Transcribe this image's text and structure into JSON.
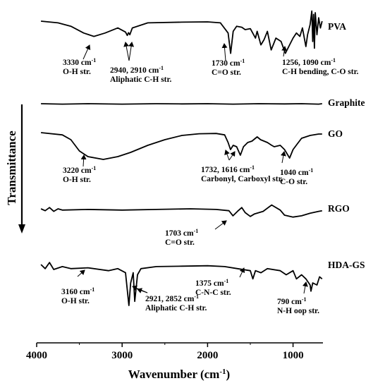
{
  "chart_data": {
    "type": "line",
    "xlabel": "Wavenumber (cm-1)",
    "ylabel": "Transmittance",
    "xlim": [
      4000,
      650
    ],
    "x_ticks": [
      "4000",
      "3000",
      "2000",
      "1000"
    ],
    "x_tick_values": [
      4000,
      3000,
      2000,
      1000
    ],
    "series": [
      {
        "name": "PVA",
        "color": "#000000",
        "points": [
          [
            3950,
            0.0
          ],
          [
            3750,
            0.05
          ],
          [
            3600,
            0.15
          ],
          [
            3450,
            0.35
          ],
          [
            3330,
            0.45
          ],
          [
            3200,
            0.35
          ],
          [
            3050,
            0.2
          ],
          [
            2960,
            0.32
          ],
          [
            2940,
            0.42
          ],
          [
            2925,
            0.34
          ],
          [
            2910,
            0.4
          ],
          [
            2880,
            0.2
          ],
          [
            2700,
            0.05
          ],
          [
            2300,
            0.03
          ],
          [
            2000,
            0.02
          ],
          [
            1850,
            0.05
          ],
          [
            1760,
            0.35
          ],
          [
            1730,
            0.95
          ],
          [
            1700,
            0.3
          ],
          [
            1660,
            0.15
          ],
          [
            1600,
            0.18
          ],
          [
            1560,
            0.25
          ],
          [
            1500,
            0.22
          ],
          [
            1440,
            0.5
          ],
          [
            1420,
            0.3
          ],
          [
            1376,
            0.7
          ],
          [
            1340,
            0.55
          ],
          [
            1300,
            0.3
          ],
          [
            1256,
            0.85
          ],
          [
            1200,
            0.5
          ],
          [
            1140,
            0.6
          ],
          [
            1090,
            0.95
          ],
          [
            1040,
            0.7
          ],
          [
            1000,
            0.5
          ],
          [
            960,
            0.35
          ],
          [
            920,
            0.45
          ],
          [
            890,
            0.2
          ],
          [
            850,
            0.75
          ],
          [
            830,
            0.4
          ],
          [
            800,
            0.1
          ],
          [
            780,
            -0.3
          ],
          [
            770,
            0.6
          ],
          [
            760,
            -0.2
          ],
          [
            750,
            0.8
          ],
          [
            740,
            -0.25
          ],
          [
            720,
            0.4
          ],
          [
            700,
            -0.1
          ],
          [
            680,
            0.2
          ],
          [
            660,
            0.0
          ]
        ]
      },
      {
        "name": "Graphite",
        "color": "#000000",
        "points": [
          [
            3950,
            0.0
          ],
          [
            3700,
            0.1
          ],
          [
            3400,
            0.0
          ],
          [
            3000,
            0.1
          ],
          [
            2600,
            0.0
          ],
          [
            2300,
            0.05
          ],
          [
            2000,
            0.0
          ],
          [
            1700,
            0.1
          ],
          [
            1400,
            0.0
          ],
          [
            1100,
            0.05
          ],
          [
            900,
            0.0
          ],
          [
            700,
            0.1
          ],
          [
            660,
            0.0
          ]
        ]
      },
      {
        "name": "GO",
        "color": "#000000",
        "points": [
          [
            3950,
            0.0
          ],
          [
            3700,
            0.08
          ],
          [
            3600,
            0.25
          ],
          [
            3500,
            0.65
          ],
          [
            3400,
            0.85
          ],
          [
            3220,
            0.95
          ],
          [
            3050,
            0.85
          ],
          [
            2900,
            0.7
          ],
          [
            2700,
            0.45
          ],
          [
            2500,
            0.25
          ],
          [
            2300,
            0.1
          ],
          [
            2100,
            0.04
          ],
          [
            1900,
            0.03
          ],
          [
            1800,
            0.08
          ],
          [
            1760,
            0.35
          ],
          [
            1732,
            0.6
          ],
          [
            1700,
            0.45
          ],
          [
            1660,
            0.5
          ],
          [
            1616,
            0.8
          ],
          [
            1580,
            0.5
          ],
          [
            1530,
            0.35
          ],
          [
            1480,
            0.3
          ],
          [
            1420,
            0.15
          ],
          [
            1380,
            0.25
          ],
          [
            1300,
            0.35
          ],
          [
            1250,
            0.45
          ],
          [
            1220,
            0.5
          ],
          [
            1150,
            0.45
          ],
          [
            1100,
            0.6
          ],
          [
            1060,
            0.8
          ],
          [
            1040,
            0.9
          ],
          [
            1000,
            0.6
          ],
          [
            950,
            0.4
          ],
          [
            900,
            0.2
          ],
          [
            800,
            0.1
          ],
          [
            700,
            0.05
          ],
          [
            660,
            0.05
          ]
        ]
      },
      {
        "name": "RGO",
        "color": "#000000",
        "points": [
          [
            3950,
            0.0
          ],
          [
            3900,
            0.15
          ],
          [
            3850,
            -0.1
          ],
          [
            3800,
            0.2
          ],
          [
            3750,
            0.0
          ],
          [
            3700,
            0.1
          ],
          [
            3400,
            0.05
          ],
          [
            3000,
            0.1
          ],
          [
            2600,
            0.05
          ],
          [
            2200,
            0.0
          ],
          [
            1900,
            0.05
          ],
          [
            1750,
            0.15
          ],
          [
            1703,
            0.55
          ],
          [
            1650,
            0.2
          ],
          [
            1600,
            -0.1
          ],
          [
            1560,
            0.3
          ],
          [
            1500,
            0.6
          ],
          [
            1450,
            0.4
          ],
          [
            1350,
            0.2
          ],
          [
            1250,
            -0.3
          ],
          [
            1150,
            0.1
          ],
          [
            1100,
            0.5
          ],
          [
            1000,
            0.65
          ],
          [
            900,
            0.55
          ],
          [
            800,
            0.35
          ],
          [
            700,
            0.2
          ],
          [
            660,
            0.15
          ]
        ]
      },
      {
        "name": "HDA-GS",
        "color": "#000000",
        "points": [
          [
            3950,
            0.0
          ],
          [
            3900,
            0.1
          ],
          [
            3850,
            -0.05
          ],
          [
            3800,
            0.12
          ],
          [
            3700,
            0.05
          ],
          [
            3600,
            0.1
          ],
          [
            3400,
            0.08
          ],
          [
            3160,
            0.15
          ],
          [
            3050,
            0.1
          ],
          [
            2960,
            0.2
          ],
          [
            2921,
            1.0
          ],
          [
            2900,
            0.45
          ],
          [
            2870,
            0.2
          ],
          [
            2852,
            0.9
          ],
          [
            2820,
            0.25
          ],
          [
            2780,
            0.1
          ],
          [
            2600,
            0.05
          ],
          [
            2300,
            0.04
          ],
          [
            2000,
            0.03
          ],
          [
            1800,
            0.05
          ],
          [
            1650,
            0.1
          ],
          [
            1500,
            0.15
          ],
          [
            1470,
            0.35
          ],
          [
            1440,
            0.15
          ],
          [
            1375,
            0.2
          ],
          [
            1300,
            0.1
          ],
          [
            1150,
            0.15
          ],
          [
            1080,
            0.25
          ],
          [
            1000,
            0.15
          ],
          [
            960,
            0.35
          ],
          [
            900,
            0.25
          ],
          [
            850,
            0.35
          ],
          [
            800,
            0.5
          ],
          [
            790,
            0.65
          ],
          [
            770,
            0.45
          ],
          [
            720,
            0.5
          ],
          [
            690,
            0.3
          ],
          [
            660,
            0.35
          ]
        ]
      }
    ],
    "annotations": [
      {
        "series": "PVA",
        "line1": "3330 cm",
        "sup": "-1",
        "line2": "O-H str."
      },
      {
        "series": "PVA",
        "line1": "2940, 2910 cm",
        "sup": "-1",
        "line2": "Aliphatic C-H str."
      },
      {
        "series": "PVA",
        "line1": "1730 cm",
        "sup": "-1",
        "line2": "C=O str."
      },
      {
        "series": "PVA",
        "line1": "1256, 1090 cm",
        "sup": "-1",
        "line2": "C-H bending, C-O str."
      },
      {
        "series": "GO",
        "line1": "3220 cm",
        "sup": "-1",
        "line2": "O-H str."
      },
      {
        "series": "GO",
        "line1": "1732, 1616 cm",
        "sup": "-1",
        "line2": "Carbonyl, Carboxyl str."
      },
      {
        "series": "GO",
        "line1": "1040 cm",
        "sup": "-1",
        "line2": "C-O str."
      },
      {
        "series": "RGO",
        "line1": "1703 cm",
        "sup": "-1",
        "line2": "C=O str."
      },
      {
        "series": "HDA-GS",
        "line1": "3160 cm",
        "sup": "-1",
        "line2": "O-H str."
      },
      {
        "series": "HDA-GS",
        "line1": "2921, 2852 cm",
        "sup": "-1",
        "line2": "Aliphatic C-H str."
      },
      {
        "series": "HDA-GS",
        "line1": "1375 cm",
        "sup": "-1",
        "line2": "C-N-C str."
      },
      {
        "series": "HDA-GS",
        "line1": "790 cm",
        "sup": "-1",
        "line2": "N-H oop str."
      }
    ]
  }
}
